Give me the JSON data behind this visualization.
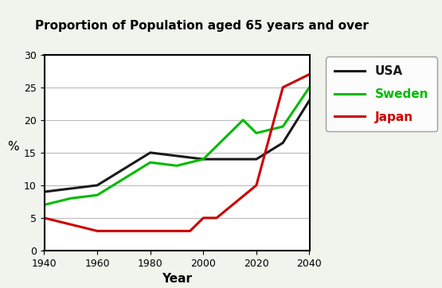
{
  "title": "Proportion of Population aged 65 years and over",
  "xlabel": "Year",
  "ylabel": "%",
  "ylim": [
    0,
    30
  ],
  "xlim": [
    1940,
    2040
  ],
  "xticks": [
    1940,
    1960,
    1980,
    2000,
    2020,
    2040
  ],
  "yticks": [
    0,
    5,
    10,
    15,
    20,
    25,
    30
  ],
  "figure_bg": "#f0f4ec",
  "plot_bg": "#ffffff",
  "series": {
    "USA": {
      "x": [
        1940,
        1950,
        1960,
        1980,
        1990,
        2000,
        2020,
        2030,
        2040
      ],
      "y": [
        9.0,
        9.5,
        10.0,
        15.0,
        14.5,
        14.0,
        14.0,
        16.5,
        23.0
      ],
      "color": "#1a1a1a",
      "linewidth": 2.2,
      "label": "USA"
    },
    "Sweden": {
      "x": [
        1940,
        1950,
        1960,
        1980,
        1990,
        2000,
        2015,
        2020,
        2030,
        2040
      ],
      "y": [
        7.0,
        8.0,
        8.5,
        13.5,
        13.0,
        14.0,
        20.0,
        18.0,
        19.0,
        25.0
      ],
      "color": "#00bb00",
      "linewidth": 2.2,
      "label": "Sweden"
    },
    "Japan": {
      "x": [
        1940,
        1960,
        1980,
        1995,
        2000,
        2005,
        2020,
        2030,
        2040
      ],
      "y": [
        5.0,
        3.0,
        3.0,
        3.0,
        5.0,
        5.0,
        10.0,
        25.0,
        27.0
      ],
      "color": "#cc0000",
      "linewidth": 2.2,
      "label": "Japan"
    }
  },
  "legend_colors": {
    "USA": "#1a1a1a",
    "Sweden": "#00bb00",
    "Japan": "#cc0000"
  }
}
